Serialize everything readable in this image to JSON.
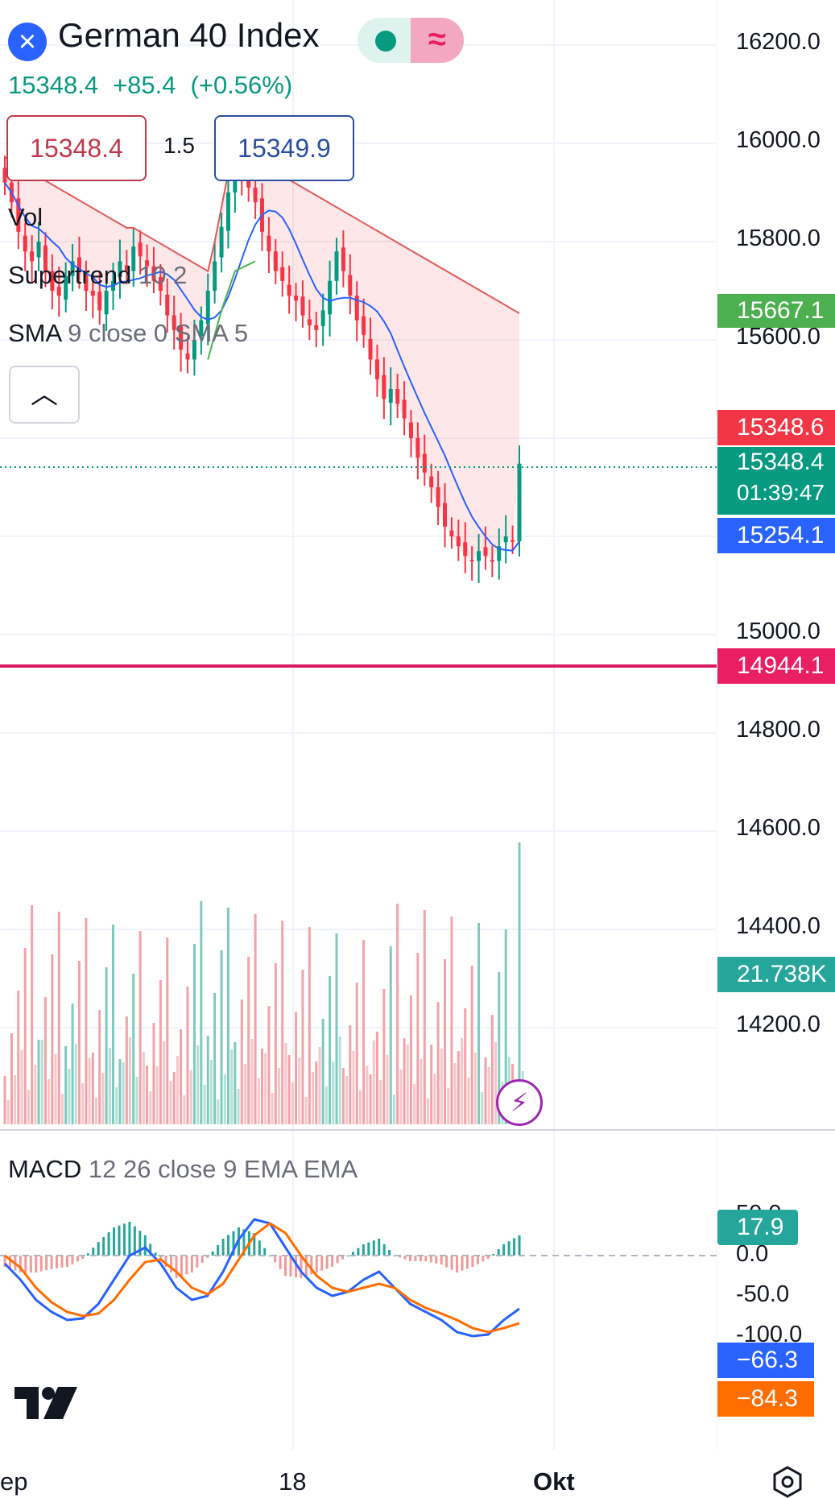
{
  "header": {
    "close_icon": "close-icon",
    "symbol_name": "German 40 Index",
    "market_status_icon": "market-open-dot-icon",
    "pill_icon": "wave-approx-icon",
    "last_price": "15348.4",
    "change": "+85.4",
    "change_pct": "(+0.56%)",
    "bid": "15348.4",
    "spread": "1.5",
    "ask": "15349.9"
  },
  "indicators": {
    "vol_label": "Vol",
    "supertrend_label": "Supertrend",
    "supertrend_params": "10 2",
    "sma_label": "SMA",
    "sma_params": "9 close 0 SMA 5",
    "collapse_icon": "chevron-up-icon"
  },
  "price_axis": {
    "ticks": [
      "16200.0",
      "16000.0",
      "15800.0",
      "15600.0",
      "15000.0",
      "14800.0",
      "14600.0",
      "14400.0",
      "14200.0"
    ]
  },
  "price_tags": {
    "supertrend_up": "15667.1",
    "supertrend_down": "15348.6",
    "last": "15348.4",
    "countdown": "01:39:47",
    "sma": "15254.1",
    "line": "14944.1",
    "volume": "21.738K"
  },
  "macd": {
    "label": "MACD",
    "params": "12 26 close 9 EMA EMA",
    "axis_ticks": [
      "50.0",
      "0.0",
      "-50.0",
      "-100.0"
    ],
    "histogram_tag": "17.9",
    "macd_tag": "−66.3",
    "signal_tag": "−84.3"
  },
  "time_axis": {
    "labels": [
      "ep",
      "18",
      "Okt"
    ]
  },
  "icons": {
    "logo": "tradingview-logo-icon",
    "bolt": "lightning-icon",
    "settings": "settings-hex-icon"
  },
  "colors": {
    "up": "#089981",
    "down": "#f23645",
    "sma_line": "#2962ff",
    "horizontal_line": "#d81b60",
    "macd_line": "#2962ff",
    "signal_line": "#ff6d00"
  },
  "chart_data": {
    "type": "candlestick",
    "price_series": {
      "close": [
        15920,
        15880,
        15820,
        15780,
        15760,
        15800,
        15740,
        15700,
        15690,
        15730,
        15760,
        15740,
        15700,
        15690,
        15660,
        15700,
        15720,
        15760,
        15740,
        15790,
        15770,
        15750,
        15720,
        15700,
        15650,
        15620,
        15580,
        15560,
        15600,
        15640,
        15700,
        15760,
        15830,
        15900,
        15950,
        15940,
        15910,
        15880,
        15820,
        15780,
        15740,
        15720,
        15690,
        15680,
        15650,
        15630,
        15620,
        15660,
        15720,
        15780,
        15740,
        15690,
        15640,
        15610,
        15560,
        15520,
        15480,
        15500,
        15470,
        15440,
        15400,
        15360,
        15330,
        15300,
        15260,
        15220,
        15200,
        15180,
        15160,
        15150,
        15170,
        15160,
        15150,
        15180,
        15200,
        15190,
        15348
      ],
      "sma_approx": "falls from ~15900 to ~15200, hooks up at end",
      "supertrend_approx": "red band above price falling from ~15950 to ~15348; green segments near 15660-15760 mid-period"
    },
    "horizontal_line": 14944.1,
    "price_range": [
      14000,
      16250
    ],
    "volume_note": "volume bars at bottom of price pane, last bar highest",
    "macd_range": [
      -110,
      60
    ],
    "macd_approx": [
      -10,
      -30,
      -55,
      -70,
      -80,
      -78,
      -60,
      -30,
      0,
      10,
      -10,
      -40,
      -55,
      -50,
      -20,
      20,
      45,
      40,
      10,
      -20,
      -40,
      -50,
      -45,
      -30,
      -20,
      -40,
      -60,
      -70,
      -80,
      -95,
      -100,
      -98,
      -80,
      -66
    ],
    "signal_approx": [
      0,
      -15,
      -40,
      -58,
      -70,
      -75,
      -72,
      -55,
      -30,
      -8,
      -5,
      -20,
      -40,
      -48,
      -35,
      -5,
      25,
      40,
      28,
      0,
      -25,
      -40,
      -45,
      -40,
      -35,
      -40,
      -55,
      -65,
      -72,
      -80,
      -90,
      -95,
      -90,
      -84
    ],
    "time_labels": [
      "ep",
      "18",
      "Okt"
    ]
  }
}
